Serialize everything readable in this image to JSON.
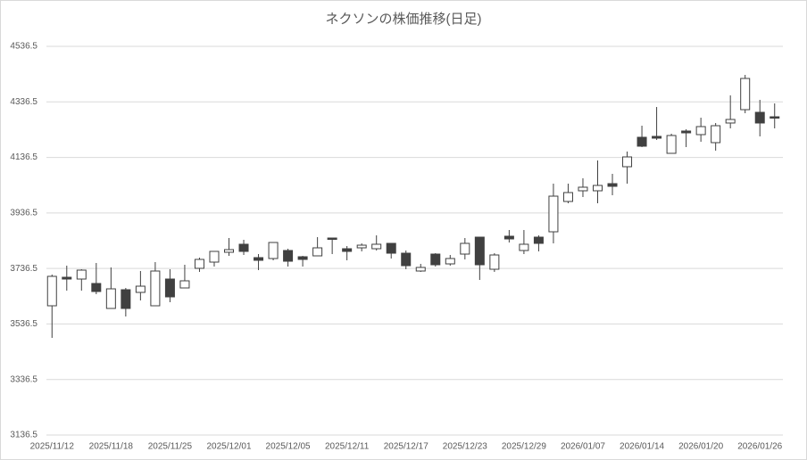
{
  "chart_data": {
    "type": "candlestick",
    "title": "ネクソンの株価推移(日足)",
    "categories": [
      "2025/11/12",
      null,
      null,
      null,
      "2025/11/18",
      null,
      null,
      null,
      "2025/11/25",
      null,
      null,
      null,
      "2025/12/01",
      null,
      null,
      null,
      "2025/12/05",
      null,
      null,
      null,
      "2025/12/11",
      null,
      null,
      null,
      "2025/12/17",
      null,
      null,
      null,
      "2025/12/23",
      null,
      null,
      null,
      "2025/12/29",
      null,
      null,
      null,
      "2026/01/07",
      null,
      null,
      null,
      "2026/01/14",
      null,
      null,
      null,
      "2026/01/20",
      null,
      null,
      null,
      "2026/01/26",
      null
    ],
    "open": [
      3602.1,
      3704.8,
      3698.4,
      3682.4,
      3592.5,
      3659.9,
      3650.3,
      3602.1,
      3698.4,
      3666.3,
      3737.0,
      3759.4,
      3794.8,
      3823.7,
      3775.5,
      3772.3,
      3801.2,
      3778.7,
      3781.9,
      3846.1,
      3807.6,
      3810.8,
      3807.6,
      3826.9,
      3791.5,
      3727.3,
      3788.3,
      3753.0,
      3788.3,
      3849.3,
      3733.7,
      3852.6,
      3801.2,
      3849.3,
      3868.6,
      3977.8,
      4016.3,
      4016.3,
      4042.0,
      4103.0,
      4209.0,
      4212.2,
      4151.2,
      4231.5,
      4218.6,
      4189.7,
      4260.4,
      4308.5,
      4298.9,
      4282.8
    ],
    "high": [
      3714.5,
      3746.6,
      3733.7,
      3756.2,
      3740.2,
      3666.3,
      3727.3,
      3759.4,
      3733.7,
      3749.8,
      3775.5,
      3798.0,
      3846.1,
      3839.7,
      3788.3,
      3830.1,
      3807.6,
      3781.9,
      3849.3,
      3846.1,
      3817.2,
      3826.9,
      3855.8,
      3826.9,
      3801.2,
      3753.0,
      3791.5,
      3785.1,
      3846.1,
      3849.3,
      3791.5,
      3875.0,
      3875.0,
      3855.8,
      4042.0,
      4042.0,
      4061.3,
      4125.5,
      4077.3,
      4157.6,
      4250.7,
      4318.1,
      4221.8,
      4237.9,
      4279.6,
      4260.4,
      4359.9,
      4433.7,
      4343.8,
      4331.0
    ],
    "low": [
      3486.5,
      3656.7,
      3656.7,
      3643.8,
      3592.5,
      3563.6,
      3621.4,
      3602.1,
      3614.9,
      3666.3,
      3724.1,
      3743.4,
      3781.9,
      3785.1,
      3730.5,
      3765.9,
      3743.4,
      3743.4,
      3781.9,
      3788.3,
      3765.9,
      3798.0,
      3801.2,
      3772.3,
      3733.7,
      3724.1,
      3743.4,
      3746.6,
      3769.1,
      3695.2,
      3724.1,
      3830.1,
      3788.3,
      3798.0,
      3826.9,
      3971.4,
      3993.8,
      3971.4,
      4000.3,
      4042.0,
      4173.7,
      4199.3,
      4151.2,
      4173.7,
      4192.9,
      4160.8,
      4241.1,
      4295.7,
      4212.2,
      4241.1
    ],
    "close": [
      3708.1,
      3698.4,
      3730.5,
      3653.5,
      3663.1,
      3592.5,
      3672.7,
      3727.3,
      3634.2,
      3692.0,
      3769.1,
      3798.0,
      3804.4,
      3798.0,
      3765.9,
      3830.1,
      3762.6,
      3769.1,
      3810.8,
      3842.9,
      3798.0,
      3820.4,
      3823.7,
      3791.5,
      3746.6,
      3740.2,
      3749.8,
      3772.3,
      3826.9,
      3749.8,
      3785.1,
      3842.9,
      3823.7,
      3826.9,
      3997.0,
      4009.9,
      4029.2,
      4035.6,
      4032.4,
      4138.3,
      4176.9,
      4205.8,
      4215.4,
      4225.0,
      4247.5,
      4250.7,
      4273.2,
      4420.9,
      4260.4,
      4279.6
    ],
    "up_color": "#ffffff",
    "down_color": "#404040",
    "line_color": "#404040",
    "ylim": [
      3136.5,
      4536.5
    ],
    "yticks": [
      3136.5,
      3336.5,
      3536.5,
      3736.5,
      3936.5,
      4136.5,
      4336.5,
      4536.5
    ],
    "grid": true
  }
}
